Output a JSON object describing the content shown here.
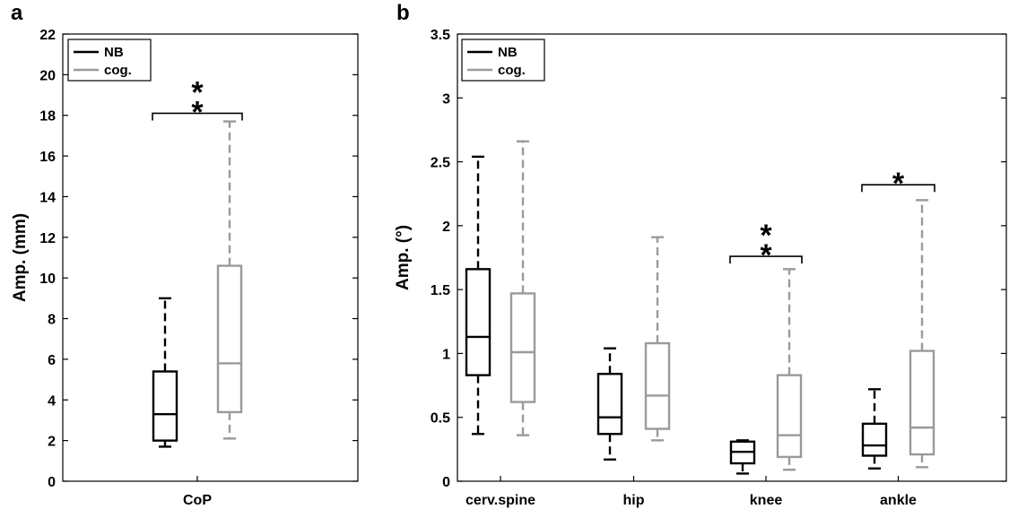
{
  "chart_data": [
    {
      "panel": "a",
      "type": "box",
      "ylabel": "Amp. (mm)",
      "ylim": [
        0,
        22
      ],
      "yticks": [
        0,
        2,
        4,
        6,
        8,
        10,
        12,
        14,
        16,
        18,
        20,
        22
      ],
      "categories": [
        "CoP"
      ],
      "legend": {
        "placement": "top-left",
        "entries": [
          "NB",
          "cog."
        ]
      },
      "series": [
        {
          "name": "NB",
          "color": "#000000",
          "boxes": [
            {
              "category": "CoP",
              "whisker_low": 1.7,
              "q1": 2.0,
              "median": 3.3,
              "q3": 5.4,
              "whisker_high": 9.0
            }
          ]
        },
        {
          "name": "cog.",
          "color": "#9a9a9a",
          "boxes": [
            {
              "category": "CoP",
              "whisker_low": 2.1,
              "q1": 3.4,
              "median": 5.8,
              "q3": 10.6,
              "whisker_high": 17.7
            }
          ]
        }
      ],
      "significance": [
        {
          "category": "CoP",
          "label": "*\n*",
          "bracket_y": 18.1
        }
      ]
    },
    {
      "panel": "b",
      "type": "box",
      "ylabel": "Amp. (°)",
      "ylim": [
        0,
        3.5
      ],
      "yticks": [
        0,
        0.5,
        1,
        1.5,
        2,
        2.5,
        3,
        3.5
      ],
      "ytick_labels": [
        "0",
        "0.5",
        "1",
        "1.5",
        "2",
        "2.5",
        "3",
        "3.5"
      ],
      "categories": [
        "cerv.spine",
        "hip",
        "knee",
        "ankle"
      ],
      "legend": {
        "placement": "top-left",
        "entries": [
          "NB",
          "cog."
        ]
      },
      "series": [
        {
          "name": "NB",
          "color": "#000000",
          "boxes": [
            {
              "category": "cerv.spine",
              "whisker_low": 0.37,
              "q1": 0.83,
              "median": 1.13,
              "q3": 1.66,
              "whisker_high": 2.54
            },
            {
              "category": "hip",
              "whisker_low": 0.17,
              "q1": 0.37,
              "median": 0.5,
              "q3": 0.84,
              "whisker_high": 1.04
            },
            {
              "category": "knee",
              "whisker_low": 0.06,
              "q1": 0.14,
              "median": 0.23,
              "q3": 0.31,
              "whisker_high": 0.32
            },
            {
              "category": "ankle",
              "whisker_low": 0.1,
              "q1": 0.2,
              "median": 0.28,
              "q3": 0.45,
              "whisker_high": 0.72
            }
          ]
        },
        {
          "name": "cog.",
          "color": "#9a9a9a",
          "boxes": [
            {
              "category": "cerv.spine",
              "whisker_low": 0.36,
              "q1": 0.62,
              "median": 1.01,
              "q3": 1.47,
              "whisker_high": 2.66
            },
            {
              "category": "hip",
              "whisker_low": 0.32,
              "q1": 0.41,
              "median": 0.67,
              "q3": 1.08,
              "whisker_high": 1.91
            },
            {
              "category": "knee",
              "whisker_low": 0.09,
              "q1": 0.19,
              "median": 0.36,
              "q3": 0.83,
              "whisker_high": 1.66
            },
            {
              "category": "ankle",
              "whisker_low": 0.11,
              "q1": 0.21,
              "median": 0.42,
              "q3": 1.02,
              "whisker_high": 2.2
            }
          ]
        }
      ],
      "significance": [
        {
          "category": "knee",
          "label": "*\n*",
          "bracket_y": 1.76
        },
        {
          "category": "ankle",
          "label": "*",
          "bracket_y": 2.32
        }
      ]
    }
  ]
}
